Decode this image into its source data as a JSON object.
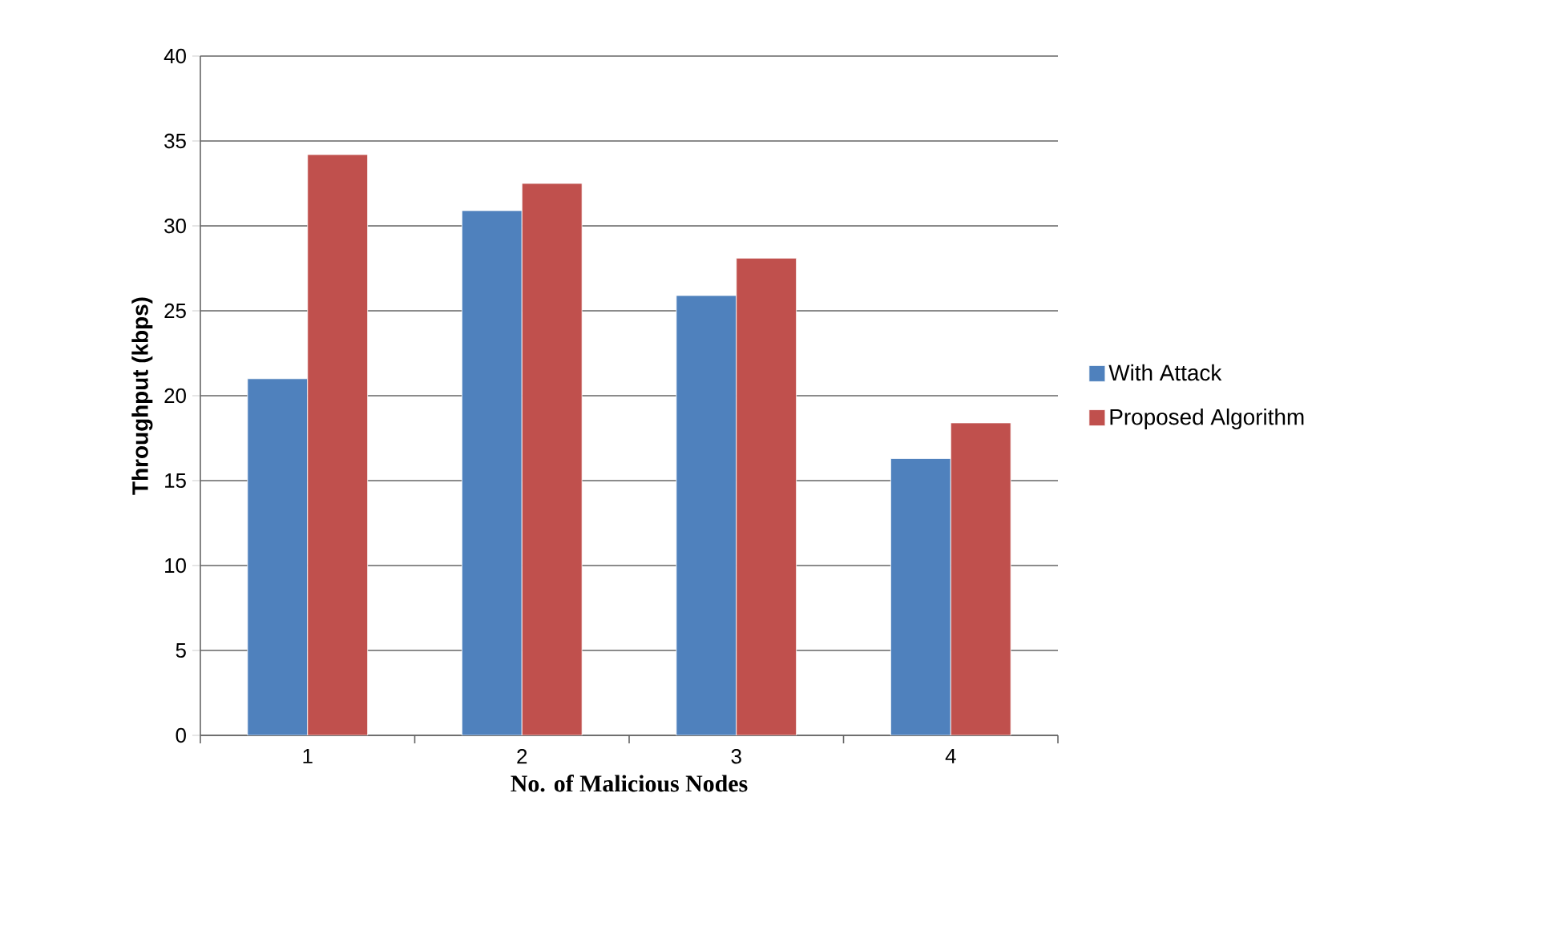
{
  "chart_data": {
    "type": "bar",
    "xlabel": "No. of Malicious Nodes",
    "ylabel": "Throughput (kbps)",
    "categories": [
      "1",
      "2",
      "3",
      "4"
    ],
    "series": [
      {
        "name": "With Attack",
        "color": "#4f81bd",
        "values": [
          21,
          30.9,
          25.9,
          16.3
        ]
      },
      {
        "name": "Proposed Algorithm",
        "color": "#c0504d",
        "values": [
          34.2,
          32.5,
          28.1,
          18.4
        ]
      }
    ],
    "ylim": [
      0,
      40
    ],
    "yticks": [
      0,
      5,
      10,
      15,
      20,
      25,
      30,
      35,
      40
    ],
    "grid": "y",
    "legend": "right"
  }
}
